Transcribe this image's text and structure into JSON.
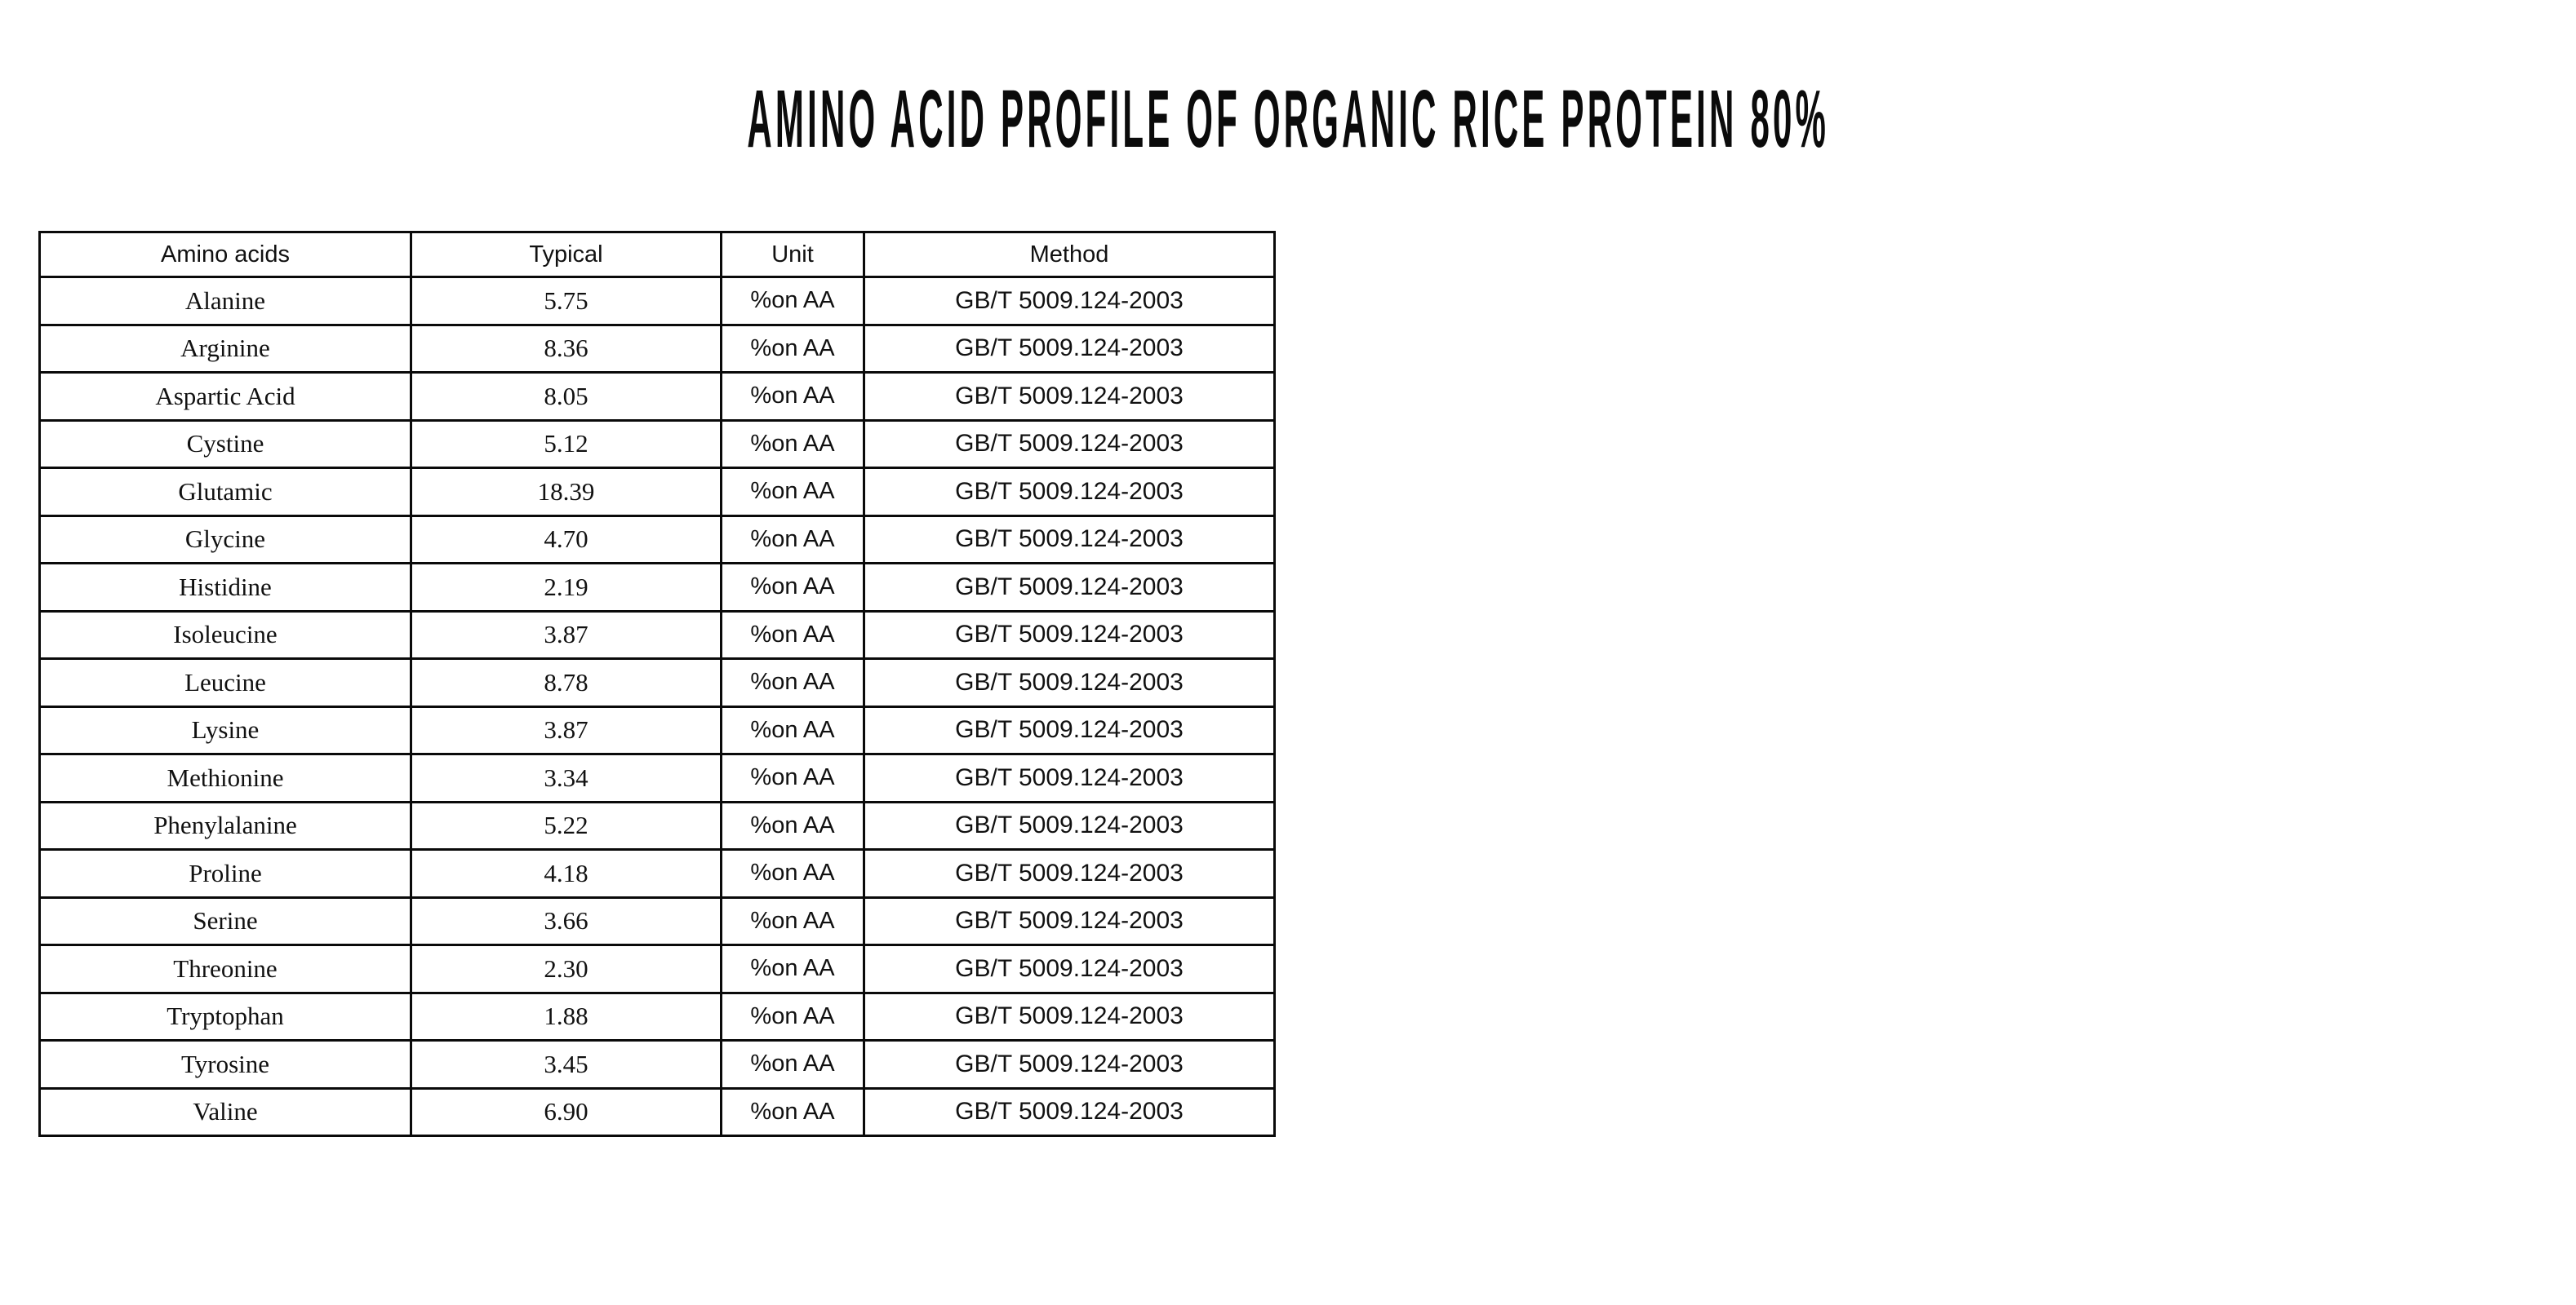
{
  "title": "AMINO ACID PROFILE OF ORGANIC RICE PROTEIN 80%",
  "table": {
    "columns": [
      "Amino acids",
      "Typical",
      "Unit",
      "Method"
    ],
    "rows": [
      {
        "name": "Alanine",
        "typical": "5.75",
        "unit": "%on AA",
        "method": "GB/T 5009.124-2003"
      },
      {
        "name": "Arginine",
        "typical": "8.36",
        "unit": "%on AA",
        "method": "GB/T 5009.124-2003"
      },
      {
        "name": "Aspartic Acid",
        "typical": "8.05",
        "unit": "%on AA",
        "method": "GB/T 5009.124-2003"
      },
      {
        "name": "Cystine",
        "typical": "5.12",
        "unit": "%on AA",
        "method": "GB/T 5009.124-2003"
      },
      {
        "name": "Glutamic",
        "typical": "18.39",
        "unit": "%on AA",
        "method": "GB/T 5009.124-2003"
      },
      {
        "name": "Glycine",
        "typical": "4.70",
        "unit": "%on AA",
        "method": "GB/T 5009.124-2003"
      },
      {
        "name": "Histidine",
        "typical": "2.19",
        "unit": "%on AA",
        "method": "GB/T 5009.124-2003"
      },
      {
        "name": "Isoleucine",
        "typical": "3.87",
        "unit": "%on AA",
        "method": "GB/T 5009.124-2003"
      },
      {
        "name": "Leucine",
        "typical": "8.78",
        "unit": "%on AA",
        "method": "GB/T 5009.124-2003"
      },
      {
        "name": "Lysine",
        "typical": "3.87",
        "unit": "%on AA",
        "method": "GB/T 5009.124-2003"
      },
      {
        "name": "Methionine",
        "typical": "3.34",
        "unit": "%on AA",
        "method": "GB/T 5009.124-2003"
      },
      {
        "name": "Phenylalanine",
        "typical": "5.22",
        "unit": "%on AA",
        "method": "GB/T 5009.124-2003"
      },
      {
        "name": "Proline",
        "typical": "4.18",
        "unit": "%on AA",
        "method": "GB/T 5009.124-2003"
      },
      {
        "name": "Serine",
        "typical": "3.66",
        "unit": "%on AA",
        "method": "GB/T 5009.124-2003"
      },
      {
        "name": "Threonine",
        "typical": "2.30",
        "unit": "%on AA",
        "method": "GB/T 5009.124-2003"
      },
      {
        "name": "Tryptophan",
        "typical": "1.88",
        "unit": "%on AA",
        "method": "GB/T 5009.124-2003"
      },
      {
        "name": "Tyrosine",
        "typical": "3.45",
        "unit": "%on AA",
        "method": "GB/T 5009.124-2003"
      },
      {
        "name": "Valine",
        "typical": "6.90",
        "unit": "%on AA",
        "method": "GB/T 5009.124-2003"
      }
    ]
  }
}
